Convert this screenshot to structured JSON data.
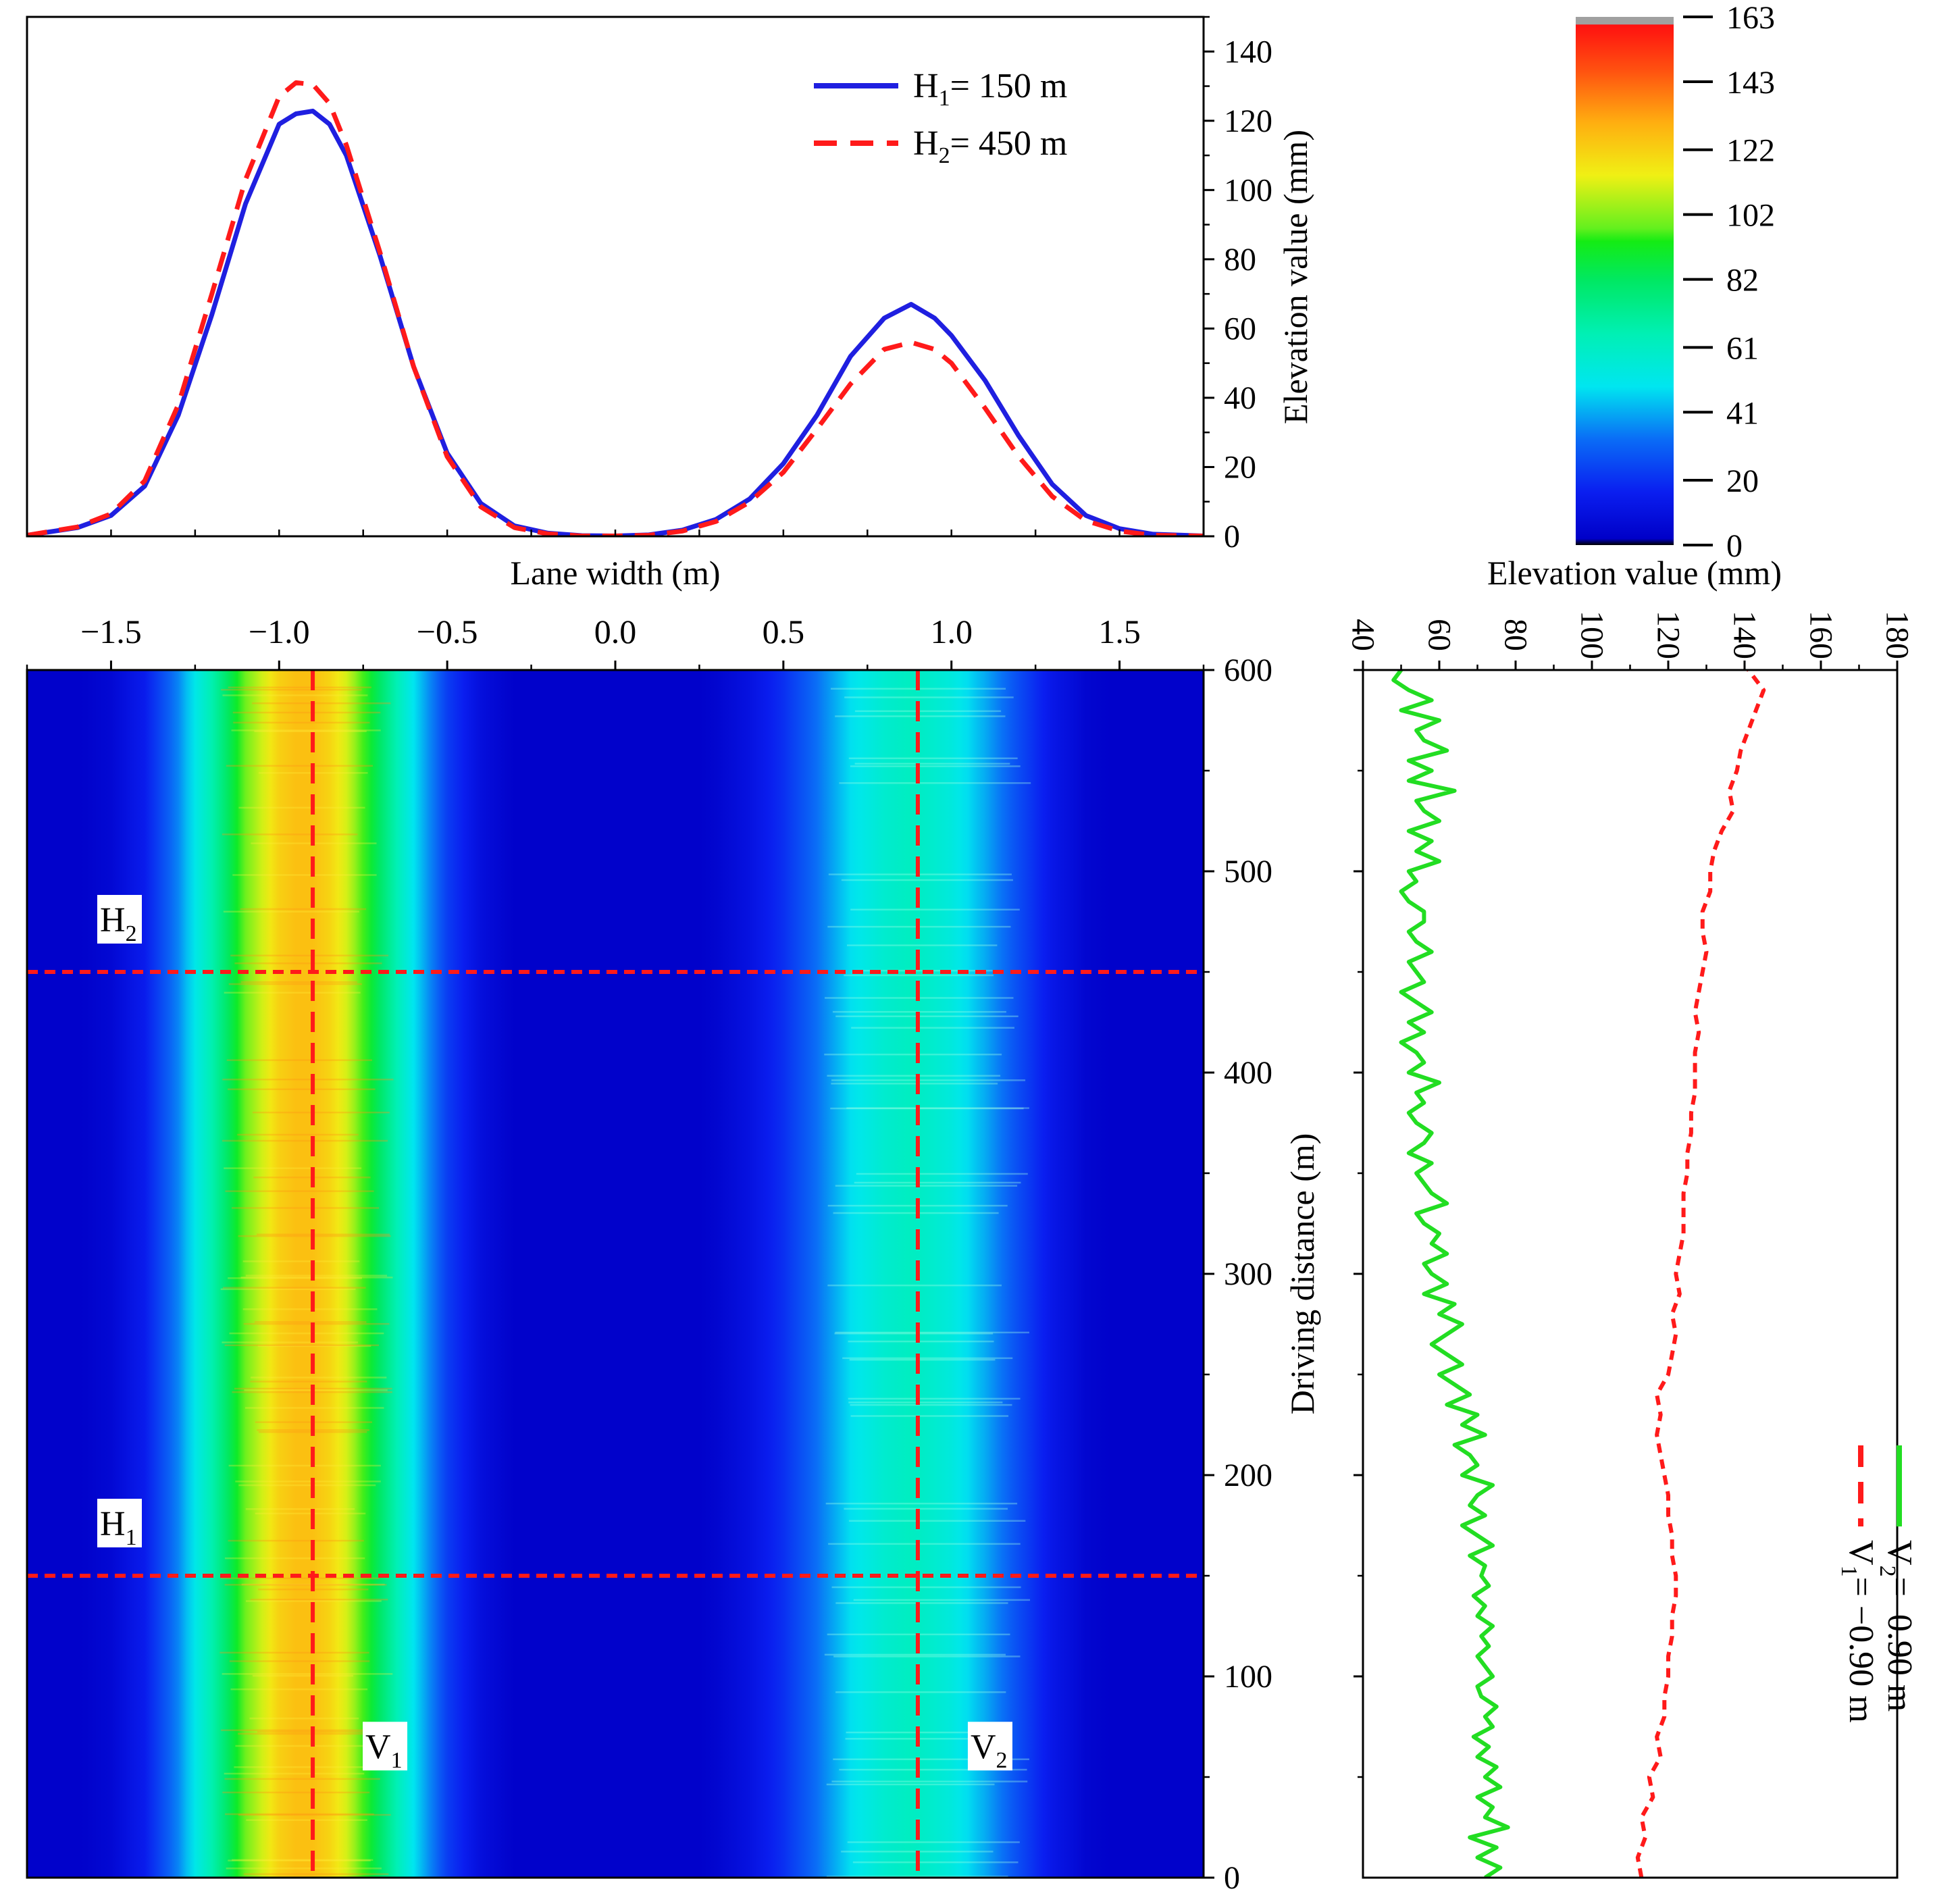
{
  "colors": {
    "h1_line": "#1f1fe0",
    "h2_line": "#ff1a1a",
    "v1_line": "#ff1a1a",
    "v2_line": "#22dd22",
    "heatmap_background": "#0a1ef0"
  },
  "chart_data": [
    {
      "id": "profile",
      "type": "line",
      "title": "",
      "xlabel": "Lane width (m)",
      "ylabel": "Elevation value (mm)",
      "xlim": [
        -1.75,
        1.75
      ],
      "ylim": [
        0,
        150
      ],
      "x_ticks": [
        "−1.5",
        "−1.0",
        "−0.5",
        "0.0",
        "0.5",
        "1.0",
        "1.5"
      ],
      "x_tick_values": [
        -1.5,
        -1.0,
        -0.5,
        0.0,
        0.5,
        1.0,
        1.5
      ],
      "y_ticks": [
        "0",
        "20",
        "40",
        "60",
        "80",
        "100",
        "120",
        "140"
      ],
      "y_tick_values": [
        0,
        20,
        40,
        60,
        80,
        100,
        120,
        140
      ],
      "legend_position": "top-right",
      "legend": [
        {
          "main": "H",
          "sub": "1",
          "tail": "= 150 m"
        },
        {
          "main": "H",
          "sub": "2",
          "tail": "= 450 m"
        }
      ],
      "series": [
        {
          "name": "H1 = 150 m",
          "style": "solid",
          "x": [
            -1.75,
            -1.6,
            -1.5,
            -1.4,
            -1.3,
            -1.2,
            -1.1,
            -1.0,
            -0.95,
            -0.9,
            -0.85,
            -0.8,
            -0.7,
            -0.6,
            -0.5,
            -0.4,
            -0.3,
            -0.2,
            -0.1,
            0.0,
            0.1,
            0.2,
            0.3,
            0.4,
            0.5,
            0.6,
            0.7,
            0.8,
            0.88,
            0.95,
            1.0,
            1.1,
            1.2,
            1.3,
            1.4,
            1.5,
            1.6,
            1.75
          ],
          "y": [
            0.3,
            2.5,
            6,
            14.5,
            35,
            64,
            96,
            119,
            122,
            122.8,
            119,
            110,
            81,
            49,
            24,
            9.5,
            3,
            0.9,
            0.2,
            0.1,
            0.4,
            1.8,
            4.9,
            10.8,
            21,
            35,
            52,
            63,
            67,
            63,
            58,
            45,
            29,
            15,
            6,
            2.2,
            0.6,
            0.1
          ]
        },
        {
          "name": "H2 = 450 m",
          "style": "dashed",
          "x": [
            -1.75,
            -1.6,
            -1.5,
            -1.4,
            -1.3,
            -1.2,
            -1.1,
            -1.0,
            -0.95,
            -0.9,
            -0.85,
            -0.8,
            -0.7,
            -0.6,
            -0.5,
            -0.4,
            -0.3,
            -0.2,
            -0.1,
            0.0,
            0.1,
            0.2,
            0.3,
            0.4,
            0.5,
            0.6,
            0.7,
            0.8,
            0.88,
            0.95,
            1.0,
            1.1,
            1.2,
            1.3,
            1.4,
            1.5,
            1.6,
            1.75
          ],
          "y": [
            0.3,
            2.7,
            6.5,
            16,
            38,
            70,
            103,
            127,
            131,
            130.5,
            125,
            113,
            82,
            49,
            23,
            8.5,
            2.5,
            0.7,
            0.1,
            0.1,
            0.3,
            1.5,
            4.3,
            9.9,
            18.5,
            31,
            44,
            54,
            56,
            54,
            50,
            37,
            23,
            11.5,
            4.5,
            1.5,
            0.3,
            0.1
          ]
        }
      ]
    },
    {
      "id": "map",
      "type": "heatmap",
      "xlabel": "",
      "ylabel": "Driving distance (m)",
      "xlim": [
        -1.75,
        1.75
      ],
      "ylim": [
        0,
        600
      ],
      "y_ticks": [
        "0",
        "100",
        "200",
        "300",
        "400",
        "500",
        "600"
      ],
      "y_tick_values": [
        0,
        100,
        200,
        300,
        400,
        500,
        600
      ],
      "profile_x": [
        -1.75,
        -1.6,
        -1.5,
        -1.4,
        -1.3,
        -1.2,
        -1.1,
        -1.0,
        -0.95,
        -0.9,
        -0.85,
        -0.8,
        -0.7,
        -0.6,
        -0.5,
        -0.4,
        -0.3,
        -0.2,
        -0.1,
        0.0,
        0.1,
        0.2,
        0.3,
        0.4,
        0.5,
        0.6,
        0.7,
        0.8,
        0.88,
        0.95,
        1.0,
        1.1,
        1.2,
        1.3,
        1.4,
        1.5,
        1.6,
        1.75
      ],
      "profile_z": [
        0.3,
        2.5,
        6,
        15,
        36,
        66,
        99,
        122,
        126,
        126,
        121,
        111,
        81,
        49,
        23,
        9,
        2.7,
        0.8,
        0.2,
        0.1,
        0.4,
        1.7,
        4.6,
        10.4,
        19.8,
        33,
        48,
        58,
        62,
        58,
        54,
        41,
        26,
        13,
        5,
        1.8,
        0.4,
        0.1
      ],
      "annotations": [
        {
          "main": "H",
          "sub": "2",
          "type": "horizontal",
          "value": 450
        },
        {
          "main": "H",
          "sub": "1",
          "type": "horizontal",
          "value": 150
        },
        {
          "main": "V",
          "sub": "1",
          "type": "vertical",
          "value": -0.9
        },
        {
          "main": "V",
          "sub": "2",
          "type": "vertical",
          "value": 0.9
        }
      ]
    },
    {
      "id": "colorbar",
      "type": "colorbar",
      "label": "Elevation value (mm)",
      "range": [
        0,
        163
      ],
      "ticks": [
        "0",
        "20",
        "41",
        "61",
        "82",
        "102",
        "122",
        "143",
        "163"
      ],
      "tick_values": [
        0,
        20,
        41,
        61,
        82,
        102,
        122,
        143,
        163
      ]
    },
    {
      "id": "longitudinal",
      "type": "line",
      "xlabel": "Elevation value (mm)",
      "ylabel": "Driving distance (m)",
      "xlim": [
        40,
        180
      ],
      "ylim": [
        0,
        600
      ],
      "x_ticks": [
        "40",
        "60",
        "80",
        "100",
        "120",
        "140",
        "160",
        "180"
      ],
      "x_tick_values": [
        40,
        60,
        80,
        100,
        120,
        140,
        160,
        180
      ],
      "legend_position": "bottom-right",
      "legend": [
        {
          "main": "V",
          "sub": "1",
          "tail": "= −0.90 m"
        },
        {
          "main": "V",
          "sub": "2",
          "tail": "=  0.90 m"
        }
      ],
      "series": [
        {
          "name": "V1 = −0.90 m",
          "style": "dashed",
          "distance": [
            0,
            10,
            20,
            30,
            40,
            50,
            60,
            70,
            80,
            90,
            100,
            110,
            120,
            130,
            140,
            150,
            160,
            170,
            180,
            190,
            200,
            210,
            220,
            230,
            240,
            250,
            260,
            270,
            280,
            290,
            300,
            310,
            320,
            330,
            340,
            350,
            360,
            370,
            380,
            390,
            400,
            410,
            420,
            430,
            440,
            450,
            460,
            470,
            480,
            490,
            500,
            510,
            520,
            530,
            540,
            550,
            560,
            570,
            580,
            590,
            600
          ],
          "values": [
            113,
            112,
            114,
            113,
            116,
            115,
            118,
            117,
            119,
            119,
            120,
            120,
            121,
            121,
            122,
            122,
            121,
            121,
            120,
            120,
            119,
            118,
            117,
            118,
            117,
            120,
            121,
            122,
            121,
            123,
            122,
            123,
            124,
            124,
            124,
            125,
            125,
            126,
            126,
            127,
            127,
            127,
            128,
            127,
            128,
            129,
            130,
            129,
            129,
            131,
            131,
            132,
            134,
            137,
            136,
            138,
            139,
            141,
            143,
            145,
            141
          ]
        },
        {
          "name": "V2 = 0.90 m",
          "style": "solid",
          "distance": [
            0,
            5,
            10,
            15,
            20,
            25,
            30,
            35,
            40,
            45,
            50,
            55,
            60,
            65,
            70,
            75,
            80,
            85,
            90,
            95,
            100,
            105,
            110,
            115,
            120,
            125,
            130,
            135,
            140,
            145,
            150,
            155,
            160,
            165,
            170,
            175,
            180,
            185,
            190,
            195,
            200,
            205,
            210,
            215,
            220,
            225,
            230,
            235,
            240,
            245,
            250,
            255,
            260,
            265,
            270,
            275,
            280,
            285,
            290,
            295,
            300,
            305,
            310,
            315,
            320,
            325,
            330,
            335,
            340,
            345,
            350,
            355,
            360,
            365,
            370,
            375,
            380,
            385,
            390,
            395,
            400,
            405,
            410,
            415,
            420,
            425,
            430,
            435,
            440,
            445,
            450,
            455,
            460,
            465,
            470,
            475,
            480,
            485,
            490,
            495,
            500,
            505,
            510,
            515,
            520,
            525,
            530,
            535,
            540,
            545,
            550,
            555,
            560,
            565,
            570,
            575,
            580,
            585,
            590,
            595,
            600
          ],
          "values": [
            72,
            76,
            70,
            75,
            68,
            78,
            72,
            74,
            70,
            76,
            72,
            75,
            70,
            73,
            69,
            74,
            72,
            75,
            71,
            70,
            74,
            72,
            70,
            73,
            71,
            74,
            70,
            72,
            69,
            73,
            71,
            72,
            68,
            74,
            70,
            66,
            72,
            68,
            70,
            74,
            66,
            70,
            68,
            64,
            72,
            66,
            70,
            62,
            68,
            64,
            60,
            66,
            62,
            58,
            62,
            66,
            60,
            64,
            56,
            62,
            58,
            56,
            62,
            58,
            60,
            56,
            54,
            62,
            58,
            56,
            54,
            58,
            52,
            56,
            58,
            54,
            52,
            56,
            54,
            60,
            52,
            56,
            54,
            50,
            56,
            52,
            58,
            54,
            50,
            56,
            54,
            52,
            58,
            54,
            52,
            56,
            56,
            52,
            50,
            54,
            52,
            60,
            54,
            58,
            52,
            60,
            56,
            54,
            64,
            52,
            58,
            52,
            62,
            56,
            54,
            60,
            50,
            58,
            52,
            48,
            50
          ]
        }
      ]
    }
  ]
}
